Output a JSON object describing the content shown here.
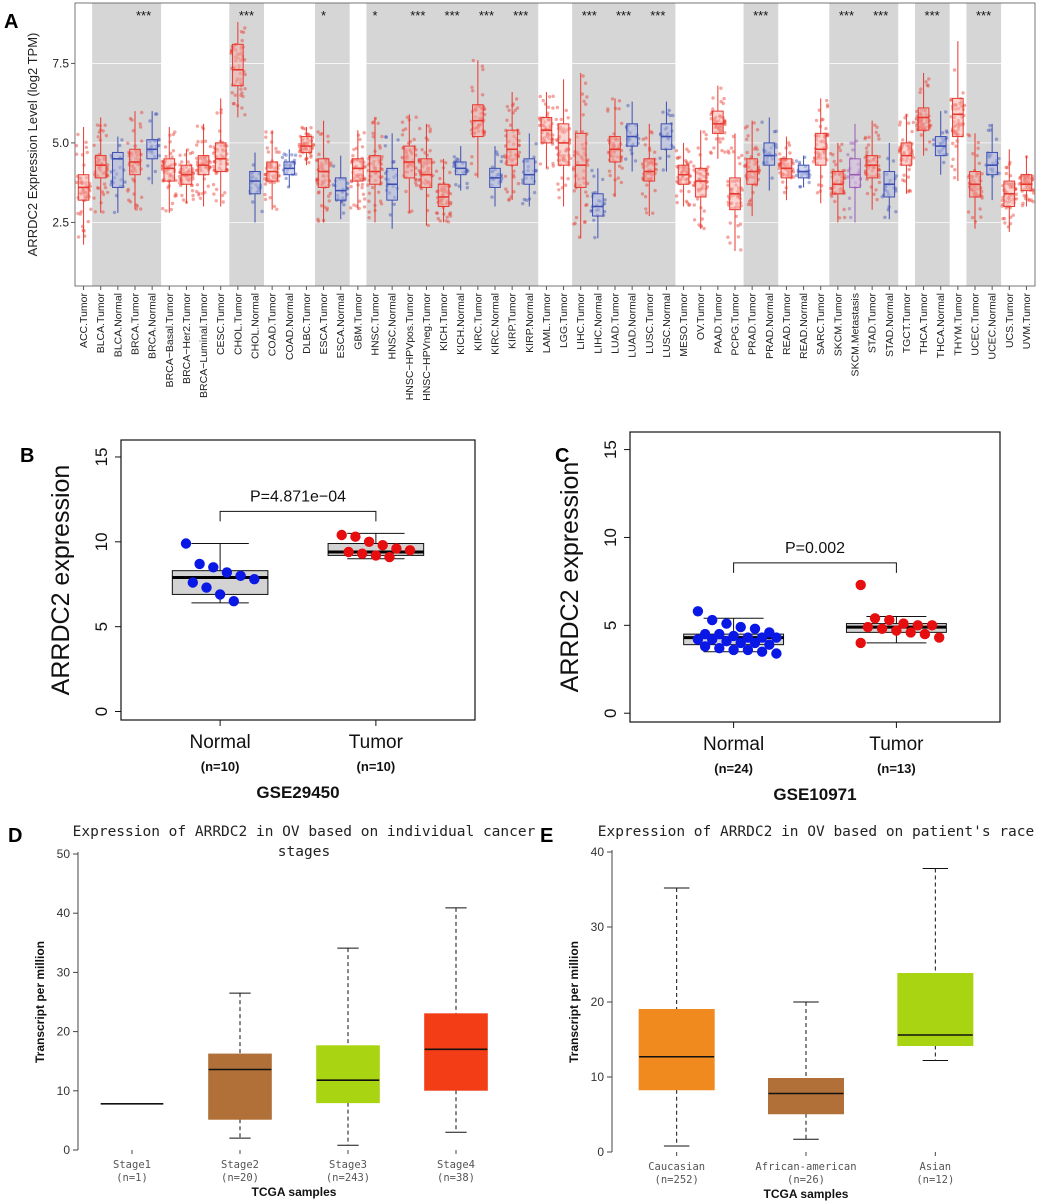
{
  "panel_labels": {
    "a": "A",
    "b": "B",
    "c": "C",
    "d": "D",
    "e": "E"
  },
  "chart_data": [
    {
      "id": "A",
      "type": "box",
      "title": "",
      "xlabel": "",
      "ylabel": "ARRDC2 Expression Level (log2 TPM)",
      "ylim": [
        0.5,
        9.4
      ],
      "yticks": [
        2.5,
        5.0,
        7.5
      ],
      "ytick_labels": [
        "2.5",
        "5.0",
        "7.5"
      ],
      "categories": [
        {
          "label": "ACC.Tumor",
          "kind": "tumor",
          "q1": 3.2,
          "med": 3.6,
          "q3": 4.0,
          "lo": 1.8,
          "hi": 5.5,
          "shade": false,
          "sig": ""
        },
        {
          "label": "BLCA.Tumor",
          "kind": "tumor",
          "q1": 3.9,
          "med": 4.3,
          "q3": 4.6,
          "lo": 2.8,
          "hi": 5.8,
          "shade": true,
          "sig": ""
        },
        {
          "label": "BLCA.Normal",
          "kind": "normal",
          "q1": 3.6,
          "med": 4.5,
          "q3": 4.7,
          "lo": 2.8,
          "hi": 5.2,
          "shade": true,
          "sig": ""
        },
        {
          "label": "BRCA.Tumor",
          "kind": "tumor",
          "q1": 4.0,
          "med": 4.4,
          "q3": 4.8,
          "lo": 2.9,
          "hi": 6.0,
          "shade": true,
          "sig": "***"
        },
        {
          "label": "BRCA.Normal",
          "kind": "normal",
          "q1": 4.5,
          "med": 4.8,
          "q3": 5.1,
          "lo": 3.7,
          "hi": 6.0,
          "shade": true,
          "sig": ""
        },
        {
          "label": "BRCA−Basal.Tumor",
          "kind": "tumor",
          "q1": 3.8,
          "med": 4.2,
          "q3": 4.5,
          "lo": 2.8,
          "hi": 5.5,
          "shade": false,
          "sig": ""
        },
        {
          "label": "BRCA−Her2.Tumor",
          "kind": "tumor",
          "q1": 3.7,
          "med": 4.0,
          "q3": 4.3,
          "lo": 3.1,
          "hi": 4.8,
          "shade": false,
          "sig": ""
        },
        {
          "label": "BRCA−Luminal.Tumor",
          "kind": "tumor",
          "q1": 4.0,
          "med": 4.3,
          "q3": 4.6,
          "lo": 3.0,
          "hi": 5.6,
          "shade": false,
          "sig": ""
        },
        {
          "label": "CESC.Tumor",
          "kind": "tumor",
          "q1": 4.1,
          "med": 4.5,
          "q3": 5.0,
          "lo": 3.0,
          "hi": 6.4,
          "shade": false,
          "sig": ""
        },
        {
          "label": "CHOL.Tumor",
          "kind": "tumor",
          "q1": 6.8,
          "med": 7.3,
          "q3": 8.1,
          "lo": 5.8,
          "hi": 8.8,
          "shade": true,
          "sig": "***"
        },
        {
          "label": "CHOL.Normal",
          "kind": "normal",
          "q1": 3.4,
          "med": 3.8,
          "q3": 4.1,
          "lo": 2.5,
          "hi": 4.7,
          "shade": true,
          "sig": ""
        },
        {
          "label": "COAD.Tumor",
          "kind": "tumor",
          "q1": 3.8,
          "med": 4.1,
          "q3": 4.4,
          "lo": 2.9,
          "hi": 5.4,
          "shade": false,
          "sig": ""
        },
        {
          "label": "COAD.Normal",
          "kind": "normal",
          "q1": 4.0,
          "med": 4.2,
          "q3": 4.4,
          "lo": 3.6,
          "hi": 4.8,
          "shade": false,
          "sig": ""
        },
        {
          "label": "DLBC.Tumor",
          "kind": "tumor",
          "q1": 4.7,
          "med": 4.9,
          "q3": 5.2,
          "lo": 4.3,
          "hi": 5.5,
          "shade": false,
          "sig": ""
        },
        {
          "label": "ESCA.Tumor",
          "kind": "tumor",
          "q1": 3.6,
          "med": 4.1,
          "q3": 4.5,
          "lo": 2.5,
          "hi": 5.7,
          "shade": true,
          "sig": "*"
        },
        {
          "label": "ESCA.Normal",
          "kind": "normal",
          "q1": 3.2,
          "med": 3.5,
          "q3": 3.9,
          "lo": 2.6,
          "hi": 4.6,
          "shade": true,
          "sig": ""
        },
        {
          "label": "GBM.Tumor",
          "kind": "tumor",
          "q1": 3.8,
          "med": 4.2,
          "q3": 4.5,
          "lo": 2.9,
          "hi": 5.4,
          "shade": false,
          "sig": ""
        },
        {
          "label": "HNSC.Tumor",
          "kind": "tumor",
          "q1": 3.7,
          "med": 4.1,
          "q3": 4.6,
          "lo": 2.5,
          "hi": 5.8,
          "shade": true,
          "sig": "*"
        },
        {
          "label": "HNSC.Normal",
          "kind": "normal",
          "q1": 3.2,
          "med": 3.7,
          "q3": 4.2,
          "lo": 2.3,
          "hi": 5.3,
          "shade": true,
          "sig": ""
        },
        {
          "label": "HNSC−HPVpos.Tumor",
          "kind": "tumor",
          "q1": 3.9,
          "med": 4.4,
          "q3": 4.9,
          "lo": 2.8,
          "hi": 5.9,
          "shade": true,
          "sig": "***"
        },
        {
          "label": "HNSC−HPVneg.Tumor",
          "kind": "tumor",
          "q1": 3.6,
          "med": 4.0,
          "q3": 4.5,
          "lo": 2.4,
          "hi": 5.6,
          "shade": true,
          "sig": ""
        },
        {
          "label": "KICH.Tumor",
          "kind": "tumor",
          "q1": 3.0,
          "med": 3.3,
          "q3": 3.7,
          "lo": 2.5,
          "hi": 4.5,
          "shade": true,
          "sig": "***"
        },
        {
          "label": "KICH.Normal",
          "kind": "normal",
          "q1": 4.0,
          "med": 4.2,
          "q3": 4.4,
          "lo": 3.5,
          "hi": 4.9,
          "shade": true,
          "sig": ""
        },
        {
          "label": "KIRC.Tumor",
          "kind": "tumor",
          "q1": 5.2,
          "med": 5.7,
          "q3": 6.2,
          "lo": 3.9,
          "hi": 7.6,
          "shade": true,
          "sig": "***"
        },
        {
          "label": "KIRC.Normal",
          "kind": "normal",
          "q1": 3.6,
          "med": 3.9,
          "q3": 4.2,
          "lo": 3.0,
          "hi": 4.9,
          "shade": true,
          "sig": ""
        },
        {
          "label": "KIRP.Tumor",
          "kind": "tumor",
          "q1": 4.3,
          "med": 4.8,
          "q3": 5.4,
          "lo": 3.2,
          "hi": 6.6,
          "shade": true,
          "sig": "***"
        },
        {
          "label": "KIRP.Normal",
          "kind": "normal",
          "q1": 3.7,
          "med": 4.0,
          "q3": 4.5,
          "lo": 3.0,
          "hi": 5.3,
          "shade": true,
          "sig": ""
        },
        {
          "label": "LAML.Tumor",
          "kind": "tumor",
          "q1": 5.0,
          "med": 5.4,
          "q3": 5.8,
          "lo": 4.2,
          "hi": 6.6,
          "shade": false,
          "sig": ""
        },
        {
          "label": "LGG.Tumor",
          "kind": "tumor",
          "q1": 4.3,
          "med": 5.0,
          "q3": 5.6,
          "lo": 3.0,
          "hi": 7.0,
          "shade": false,
          "sig": ""
        },
        {
          "label": "LIHC.Tumor",
          "kind": "tumor",
          "q1": 3.6,
          "med": 4.3,
          "q3": 5.3,
          "lo": 2.0,
          "hi": 7.2,
          "shade": true,
          "sig": "***"
        },
        {
          "label": "LIHC.Normal",
          "kind": "normal",
          "q1": 2.7,
          "med": 3.0,
          "q3": 3.4,
          "lo": 2.0,
          "hi": 4.2,
          "shade": true,
          "sig": ""
        },
        {
          "label": "LUAD.Tumor",
          "kind": "tumor",
          "q1": 4.4,
          "med": 4.8,
          "q3": 5.2,
          "lo": 3.3,
          "hi": 6.4,
          "shade": true,
          "sig": "***"
        },
        {
          "label": "LUAD.Normal",
          "kind": "normal",
          "q1": 4.9,
          "med": 5.2,
          "q3": 5.6,
          "lo": 4.1,
          "hi": 6.3,
          "shade": true,
          "sig": ""
        },
        {
          "label": "LUSC.Tumor",
          "kind": "tumor",
          "q1": 3.8,
          "med": 4.1,
          "q3": 4.5,
          "lo": 2.7,
          "hi": 5.6,
          "shade": true,
          "sig": "***"
        },
        {
          "label": "LUSC.Normal",
          "kind": "normal",
          "q1": 4.8,
          "med": 5.2,
          "q3": 5.6,
          "lo": 4.1,
          "hi": 6.3,
          "shade": true,
          "sig": ""
        },
        {
          "label": "MESO.Tumor",
          "kind": "tumor",
          "q1": 3.7,
          "med": 4.0,
          "q3": 4.3,
          "lo": 3.0,
          "hi": 5.0,
          "shade": false,
          "sig": ""
        },
        {
          "label": "OV.Tumor",
          "kind": "tumor",
          "q1": 3.3,
          "med": 3.8,
          "q3": 4.2,
          "lo": 2.3,
          "hi": 5.4,
          "shade": false,
          "sig": ""
        },
        {
          "label": "PAAD.Tumor",
          "kind": "tumor",
          "q1": 5.3,
          "med": 5.6,
          "q3": 6.0,
          "lo": 4.5,
          "hi": 6.8,
          "shade": false,
          "sig": ""
        },
        {
          "label": "PCPG.Tumor",
          "kind": "tumor",
          "q1": 2.9,
          "med": 3.4,
          "q3": 3.9,
          "lo": 1.6,
          "hi": 5.3,
          "shade": false,
          "sig": ""
        },
        {
          "label": "PRAD.Tumor",
          "kind": "tumor",
          "q1": 3.7,
          "med": 4.1,
          "q3": 4.5,
          "lo": 2.7,
          "hi": 5.7,
          "shade": true,
          "sig": "***"
        },
        {
          "label": "PRAD.Normal",
          "kind": "normal",
          "q1": 4.3,
          "med": 4.6,
          "q3": 5.0,
          "lo": 3.5,
          "hi": 5.8,
          "shade": true,
          "sig": ""
        },
        {
          "label": "READ.Tumor",
          "kind": "tumor",
          "q1": 3.9,
          "med": 4.2,
          "q3": 4.5,
          "lo": 3.2,
          "hi": 5.2,
          "shade": false,
          "sig": ""
        },
        {
          "label": "READ.Normal",
          "kind": "normal",
          "q1": 3.9,
          "med": 4.1,
          "q3": 4.3,
          "lo": 3.6,
          "hi": 4.6,
          "shade": false,
          "sig": ""
        },
        {
          "label": "SARC.Tumor",
          "kind": "tumor",
          "q1": 4.3,
          "med": 4.8,
          "q3": 5.3,
          "lo": 3.1,
          "hi": 6.4,
          "shade": false,
          "sig": ""
        },
        {
          "label": "SKCM.Tumor",
          "kind": "tumor",
          "q1": 3.4,
          "med": 3.7,
          "q3": 4.1,
          "lo": 2.5,
          "hi": 5.0,
          "shade": true,
          "sig": "***"
        },
        {
          "label": "SKCM.Metastasis",
          "kind": "metastasis",
          "q1": 3.6,
          "med": 4.0,
          "q3": 4.5,
          "lo": 2.5,
          "hi": 5.6,
          "shade": true,
          "sig": ""
        },
        {
          "label": "STAD.Tumor",
          "kind": "tumor",
          "q1": 3.9,
          "med": 4.3,
          "q3": 4.6,
          "lo": 2.9,
          "hi": 5.7,
          "shade": true,
          "sig": "***"
        },
        {
          "label": "STAD.Normal",
          "kind": "normal",
          "q1": 3.3,
          "med": 3.7,
          "q3": 4.1,
          "lo": 2.6,
          "hi": 5.0,
          "shade": true,
          "sig": ""
        },
        {
          "label": "TGCT.Tumor",
          "kind": "tumor",
          "q1": 4.3,
          "med": 4.6,
          "q3": 5.0,
          "lo": 3.4,
          "hi": 5.9,
          "shade": false,
          "sig": ""
        },
        {
          "label": "THCA.Tumor",
          "kind": "tumor",
          "q1": 5.4,
          "med": 5.8,
          "q3": 6.1,
          "lo": 4.6,
          "hi": 7.2,
          "shade": true,
          "sig": "***"
        },
        {
          "label": "THCA.Normal",
          "kind": "normal",
          "q1": 4.6,
          "med": 4.9,
          "q3": 5.2,
          "lo": 4.0,
          "hi": 6.0,
          "shade": true,
          "sig": ""
        },
        {
          "label": "THYM.Tumor",
          "kind": "tumor",
          "q1": 5.2,
          "med": 5.9,
          "q3": 6.4,
          "lo": 3.8,
          "hi": 8.2,
          "shade": false,
          "sig": ""
        },
        {
          "label": "UCEC.Tumor",
          "kind": "tumor",
          "q1": 3.3,
          "med": 3.7,
          "q3": 4.1,
          "lo": 2.3,
          "hi": 5.3,
          "shade": true,
          "sig": "***"
        },
        {
          "label": "UCEC.Normal",
          "kind": "normal",
          "q1": 4.0,
          "med": 4.3,
          "q3": 4.7,
          "lo": 3.2,
          "hi": 5.6,
          "shade": true,
          "sig": ""
        },
        {
          "label": "UCS.Tumor",
          "kind": "tumor",
          "q1": 3.0,
          "med": 3.4,
          "q3": 3.8,
          "lo": 2.2,
          "hi": 4.8,
          "shade": false,
          "sig": ""
        },
        {
          "label": "UVM.Tumor",
          "kind": "tumor",
          "q1": 3.5,
          "med": 3.7,
          "q3": 4.0,
          "lo": 3.0,
          "hi": 4.6,
          "shade": false,
          "sig": ""
        }
      ],
      "colors": {
        "tumor": "#e8392f",
        "normal": "#3d4fb3",
        "metastasis": "#9b59b6",
        "shade": "#d6d6d6"
      }
    },
    {
      "id": "B",
      "type": "box",
      "title": "GSE29450",
      "ylabel": "ARRDC2 expression",
      "ylim": [
        -0.5,
        16
      ],
      "yticks": [
        0,
        5,
        10,
        15
      ],
      "ytick_labels": [
        "0",
        "5",
        "10",
        "15"
      ],
      "pvalue": "P=4.871e−04",
      "groups": [
        {
          "label": "Normal",
          "n_label": "(n=10)",
          "color": "#0a18e6",
          "q1": 6.9,
          "med": 7.9,
          "q3": 8.3,
          "lo": 6.4,
          "hi": 9.9,
          "points": [
            9.9,
            8.7,
            8.5,
            8.2,
            8.0,
            7.8,
            7.6,
            7.3,
            6.9,
            6.5
          ]
        },
        {
          "label": "Tumor",
          "n_label": "(n=10)",
          "color": "#e60e0e",
          "q1": 9.2,
          "med": 9.4,
          "q3": 9.9,
          "lo": 9.0,
          "hi": 10.5,
          "points": [
            10.4,
            10.3,
            10.0,
            9.8,
            9.6,
            9.5,
            9.4,
            9.3,
            9.2,
            9.1
          ]
        }
      ]
    },
    {
      "id": "C",
      "type": "box",
      "title": "GSE10971",
      "ylabel": "ARRDC2 expression",
      "ylim": [
        -0.5,
        16
      ],
      "yticks": [
        0,
        5,
        10,
        15
      ],
      "ytick_labels": [
        "0",
        "5",
        "10",
        "15"
      ],
      "pvalue": "P=0.002",
      "groups": [
        {
          "label": "Normal",
          "n_label": "(n=24)",
          "color": "#0a18e6",
          "q1": 3.9,
          "med": 4.3,
          "q3": 4.5,
          "lo": 3.5,
          "hi": 5.4,
          "points": [
            5.8,
            5.3,
            5.1,
            4.9,
            4.8,
            4.6,
            4.5,
            4.5,
            4.4,
            4.3,
            4.3,
            4.3,
            4.2,
            4.2,
            4.1,
            4.0,
            4.0,
            3.9,
            3.8,
            3.7,
            3.6,
            3.6,
            3.5,
            3.4
          ]
        },
        {
          "label": "Tumor",
          "n_label": "(n=13)",
          "color": "#e60e0e",
          "q1": 4.6,
          "med": 4.9,
          "q3": 5.1,
          "lo": 4.0,
          "hi": 5.5,
          "points": [
            7.3,
            5.4,
            5.3,
            5.1,
            5.0,
            5.0,
            4.9,
            4.8,
            4.7,
            4.6,
            4.5,
            4.3,
            4.0
          ]
        }
      ]
    },
    {
      "id": "D",
      "type": "box",
      "title_line1": "Expression of ARRDC2 in OV based on individual cancer",
      "title_line2": "stages",
      "xlabel": "TCGA samples",
      "ylabel": "Transcript per million",
      "ylim": [
        0,
        50
      ],
      "yticks": [
        0,
        10,
        20,
        30,
        40,
        50
      ],
      "ytick_labels": [
        "0",
        "10",
        "20",
        "30",
        "40",
        "50"
      ],
      "groups": [
        {
          "label": "Stage1",
          "n_label": "(n=1)",
          "color": "#ffffff",
          "q1": 7.8,
          "med": 7.8,
          "q3": 7.8,
          "lo": 7.8,
          "hi": 7.8
        },
        {
          "label": "Stage2",
          "n_label": "(n=20)",
          "color": "#b07038",
          "q1": 5.2,
          "med": 13.6,
          "q3": 16.2,
          "lo": 2.0,
          "hi": 26.5
        },
        {
          "label": "Stage3",
          "n_label": "(n=243)",
          "color": "#a9d411",
          "q1": 8.0,
          "med": 11.8,
          "q3": 17.6,
          "lo": 0.8,
          "hi": 34.1
        },
        {
          "label": "Stage4",
          "n_label": "(n=38)",
          "color": "#f23d17",
          "q1": 10.1,
          "med": 17.0,
          "q3": 23.0,
          "lo": 3.0,
          "hi": 40.9
        }
      ]
    },
    {
      "id": "E",
      "type": "box",
      "title_line1": "Expression of ARRDC2 in OV based on patient's race",
      "xlabel": "TCGA samples",
      "ylabel": "Transcript per million",
      "ylim": [
        0,
        40
      ],
      "yticks": [
        0,
        10,
        20,
        30,
        40
      ],
      "ytick_labels": [
        "0",
        "10",
        "20",
        "30",
        "40"
      ],
      "groups": [
        {
          "label": "Caucasian",
          "n_label": "(n=252)",
          "color": "#f08a1f",
          "q1": 8.3,
          "med": 12.7,
          "q3": 19.0,
          "lo": 0.8,
          "hi": 35.2
        },
        {
          "label": "African-american",
          "n_label": "(n=26)",
          "color": "#b07038",
          "q1": 5.1,
          "med": 7.8,
          "q3": 9.8,
          "lo": 1.7,
          "hi": 20.0
        },
        {
          "label": "Asian",
          "n_label": "(n=12)",
          "color": "#a9d411",
          "q1": 14.2,
          "med": 15.6,
          "q3": 23.8,
          "lo": 12.2,
          "hi": 37.8
        }
      ]
    }
  ]
}
